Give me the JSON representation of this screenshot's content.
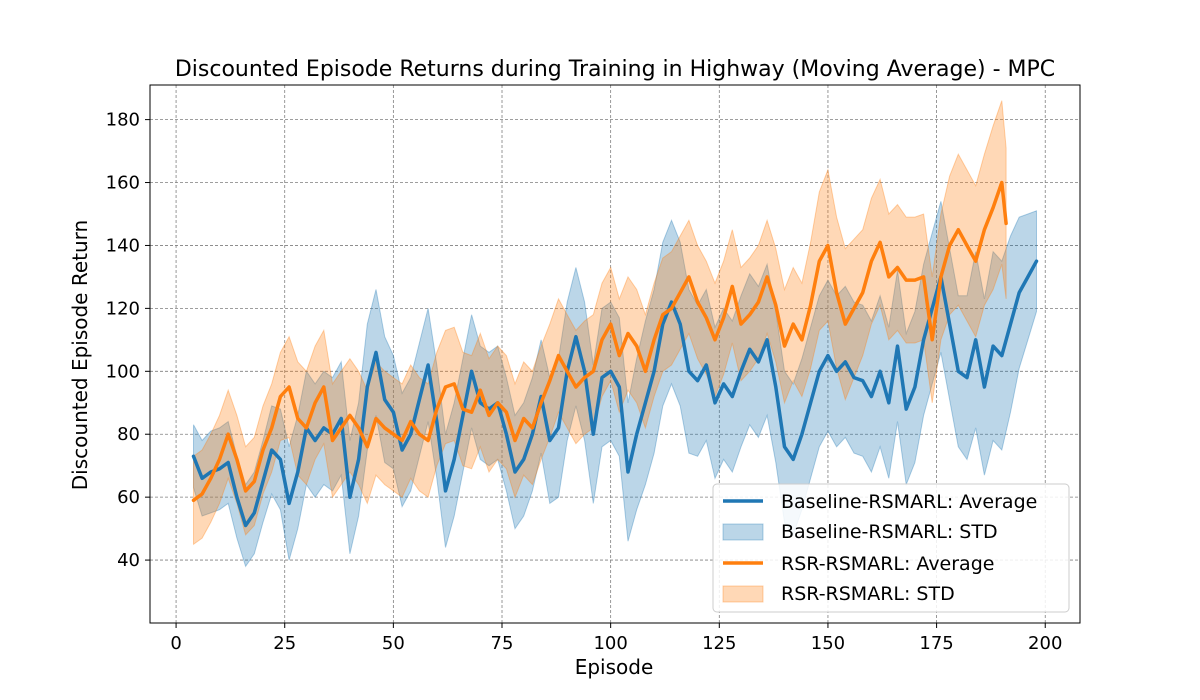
{
  "chart_data": {
    "type": "line",
    "title": "Discounted Episode Returns during Training in Highway (Moving Average) - MPC",
    "xlabel": "Episode",
    "ylabel": "Discounted Episode Return",
    "xlim": [
      -6,
      208
    ],
    "ylim": [
      20,
      191
    ],
    "xticks": [
      0,
      25,
      50,
      75,
      100,
      125,
      150,
      175,
      200
    ],
    "yticks": [
      40,
      60,
      80,
      100,
      120,
      140,
      160,
      180
    ],
    "grid": true,
    "legend_position": "lower-right",
    "series": [
      {
        "name": "Baseline-RSMARL: Average",
        "std_name": "Baseline-RSMARL: STD",
        "color": "#1f77b4",
        "x": [
          4,
          6,
          8,
          10,
          12,
          14,
          16,
          18,
          20,
          22,
          24,
          26,
          28,
          30,
          32,
          34,
          36,
          38,
          40,
          42,
          44,
          46,
          48,
          50,
          52,
          54,
          56,
          58,
          60,
          62,
          64,
          66,
          68,
          70,
          72,
          74,
          76,
          78,
          80,
          82,
          84,
          86,
          88,
          90,
          92,
          94,
          96,
          98,
          100,
          102,
          104,
          106,
          108,
          110,
          112,
          114,
          116,
          118,
          120,
          122,
          124,
          126,
          128,
          130,
          132,
          134,
          136,
          138,
          140,
          142,
          144,
          146,
          148,
          150,
          152,
          154,
          156,
          158,
          160,
          162,
          164,
          166,
          168,
          170,
          172,
          174,
          176,
          178,
          180,
          182,
          184,
          186,
          188,
          190,
          192,
          194,
          196,
          198
        ],
        "mean": [
          73,
          66,
          68,
          69,
          71,
          60,
          51,
          55,
          65,
          75,
          72,
          58,
          68,
          82,
          78,
          82,
          80,
          85,
          60,
          72,
          95,
          106,
          91,
          87,
          75,
          80,
          91,
          102,
          84,
          62,
          72,
          86,
          100,
          90,
          88,
          90,
          80,
          68,
          72,
          80,
          92,
          78,
          82,
          100,
          111,
          100,
          80,
          98,
          100,
          95,
          68,
          80,
          90,
          100,
          115,
          122,
          115,
          100,
          97,
          102,
          90,
          96,
          92,
          100,
          107,
          103,
          110,
          95,
          76,
          72,
          80,
          90,
          100,
          105,
          100,
          103,
          98,
          97,
          92,
          100,
          90,
          108,
          88,
          95,
          110,
          120,
          130,
          115,
          100,
          98,
          110,
          95,
          108,
          105,
          115,
          125,
          130,
          135
        ],
        "std": [
          10,
          12,
          13,
          13,
          13,
          13,
          13,
          13,
          13,
          14,
          16,
          18,
          18,
          18,
          18,
          18,
          18,
          18,
          18,
          18,
          20,
          20,
          20,
          18,
          18,
          18,
          18,
          18,
          18,
          18,
          18,
          18,
          18,
          18,
          18,
          18,
          18,
          18,
          18,
          18,
          18,
          20,
          22,
          22,
          22,
          22,
          22,
          22,
          22,
          22,
          22,
          24,
          26,
          26,
          26,
          26,
          26,
          26,
          24,
          24,
          24,
          24,
          24,
          24,
          24,
          24,
          24,
          24,
          24,
          24,
          24,
          24,
          24,
          24,
          24,
          24,
          24,
          24,
          24,
          24,
          24,
          24,
          24,
          24,
          24,
          24,
          24,
          24,
          24,
          26,
          28,
          28,
          30,
          30,
          28,
          24,
          20,
          16
        ]
      },
      {
        "name": "RSR-RSMARL: Average",
        "std_name": "RSR-RSMARL: STD",
        "color": "#ff7f0e",
        "x": [
          4,
          6,
          8,
          10,
          12,
          14,
          16,
          18,
          20,
          22,
          24,
          26,
          28,
          30,
          32,
          34,
          36,
          38,
          40,
          42,
          44,
          46,
          48,
          50,
          52,
          54,
          56,
          58,
          60,
          62,
          64,
          66,
          68,
          70,
          72,
          74,
          76,
          78,
          80,
          82,
          84,
          86,
          88,
          90,
          92,
          94,
          96,
          98,
          100,
          102,
          104,
          106,
          108,
          110,
          112,
          114,
          116,
          118,
          120,
          122,
          124,
          126,
          128,
          130,
          132,
          134,
          136,
          138,
          140,
          142,
          144,
          146,
          148,
          150,
          152,
          154,
          156,
          158,
          160,
          162,
          164,
          166,
          168,
          170,
          172,
          174,
          176,
          178,
          180,
          182,
          184,
          186,
          188,
          190,
          191
        ],
        "mean": [
          59,
          61,
          66,
          72,
          80,
          72,
          62,
          65,
          75,
          82,
          92,
          95,
          85,
          82,
          90,
          95,
          78,
          82,
          86,
          82,
          76,
          85,
          82,
          80,
          78,
          84,
          80,
          78,
          88,
          95,
          96,
          88,
          87,
          94,
          86,
          90,
          87,
          78,
          85,
          82,
          90,
          97,
          105,
          100,
          95,
          98,
          100,
          110,
          115,
          105,
          112,
          108,
          100,
          110,
          118,
          120,
          125,
          130,
          122,
          117,
          110,
          117,
          127,
          115,
          118,
          122,
          130,
          121,
          108,
          115,
          110,
          121,
          135,
          140,
          125,
          115,
          120,
          125,
          135,
          141,
          130,
          133,
          129,
          129,
          130,
          110,
          130,
          140,
          145,
          140,
          135,
          145,
          152,
          160,
          147
        ],
        "std": [
          14,
          14,
          14,
          14,
          14,
          14,
          14,
          14,
          14,
          14,
          14,
          16,
          18,
          18,
          18,
          18,
          18,
          18,
          18,
          18,
          18,
          18,
          18,
          18,
          18,
          18,
          18,
          18,
          18,
          18,
          18,
          18,
          18,
          18,
          18,
          18,
          18,
          18,
          18,
          18,
          18,
          18,
          18,
          18,
          18,
          18,
          18,
          18,
          18,
          18,
          18,
          18,
          18,
          18,
          18,
          18,
          18,
          18,
          18,
          18,
          18,
          18,
          18,
          18,
          18,
          18,
          18,
          18,
          18,
          18,
          18,
          20,
          22,
          24,
          24,
          24,
          22,
          20,
          20,
          20,
          20,
          20,
          20,
          20,
          20,
          20,
          20,
          22,
          24,
          24,
          24,
          24,
          26,
          26,
          24
        ]
      }
    ]
  }
}
